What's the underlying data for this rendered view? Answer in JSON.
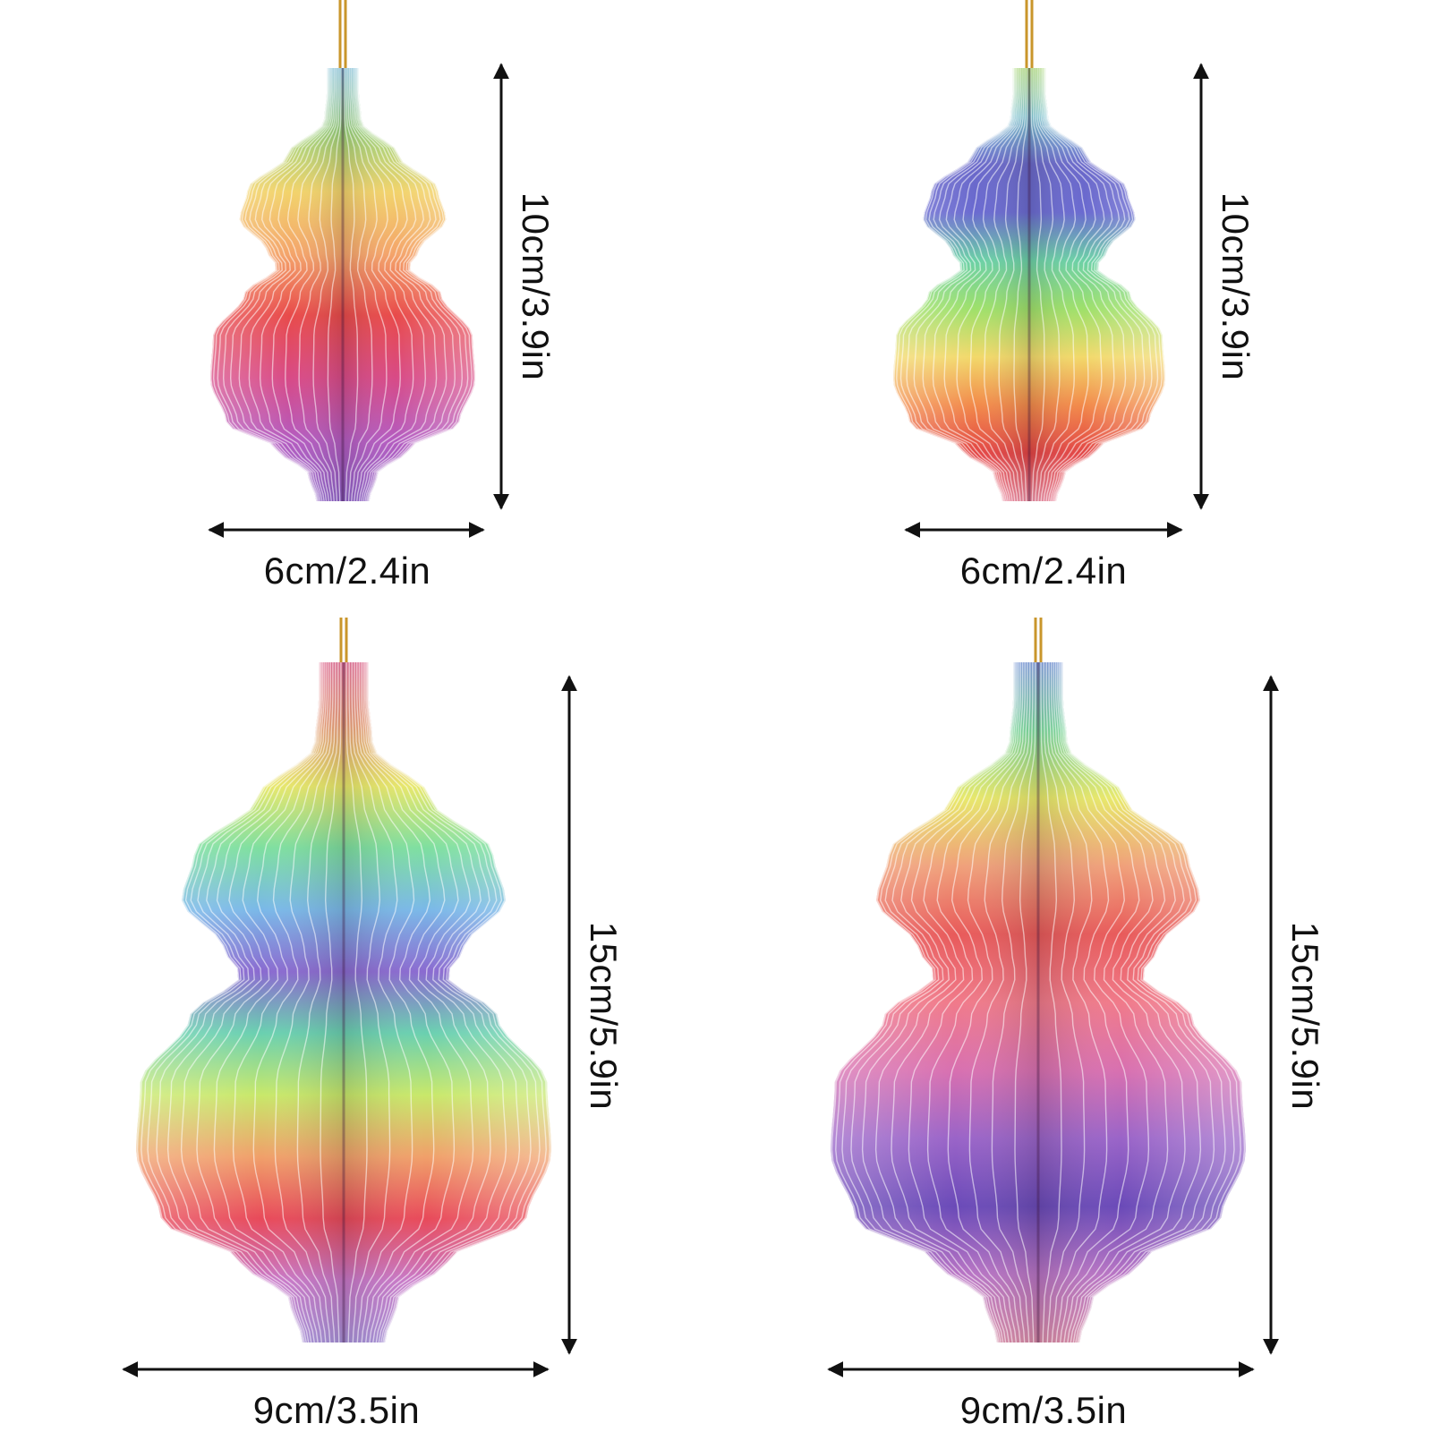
{
  "figure": {
    "description_items": [
      {
        "id": "small-warm",
        "palette": [
          "#7ec8e3",
          "#9ad27a",
          "#f2d36b",
          "#f4a46a",
          "#e84a4a",
          "#d84a86",
          "#b45bbf",
          "#8e5fc7"
        ],
        "height_label": "10cm/3.9in",
        "width_label": "6cm/2.4in"
      },
      {
        "id": "small-cool",
        "palette": [
          "#a8e06b",
          "#7ecbd8",
          "#6a68c9",
          "#6a6ad0",
          "#6bd0a6",
          "#9ee06a",
          "#f2d96a",
          "#f28a4a",
          "#e24444",
          "#f08aa0"
        ],
        "height_label": "10cm/3.9in",
        "width_label": "6cm/2.4in"
      },
      {
        "id": "large-rainbow",
        "palette": [
          "#f07aa0",
          "#f0a07a",
          "#e8e86a",
          "#7edfa0",
          "#7ab8e8",
          "#8a6ad0",
          "#6ad0b0",
          "#c8e86a",
          "#f0a06a",
          "#e84a5a",
          "#c878c8",
          "#a890d8"
        ],
        "height_label": "15cm/5.9in",
        "width_label": "9cm/3.5in"
      },
      {
        "id": "large-pastel",
        "palette": [
          "#8aa8e8",
          "#7edfa0",
          "#e8e86a",
          "#f0a07a",
          "#e85a5a",
          "#f07a8a",
          "#d870b0",
          "#9a64c8",
          "#6a4ab8",
          "#b874c4",
          "#d88aa8"
        ],
        "height_label": "15cm/5.9in",
        "width_label": "9cm/3.5in"
      }
    ]
  },
  "colors": {
    "arrow": "#111111",
    "string": "#c9962b",
    "background": "#ffffff"
  }
}
